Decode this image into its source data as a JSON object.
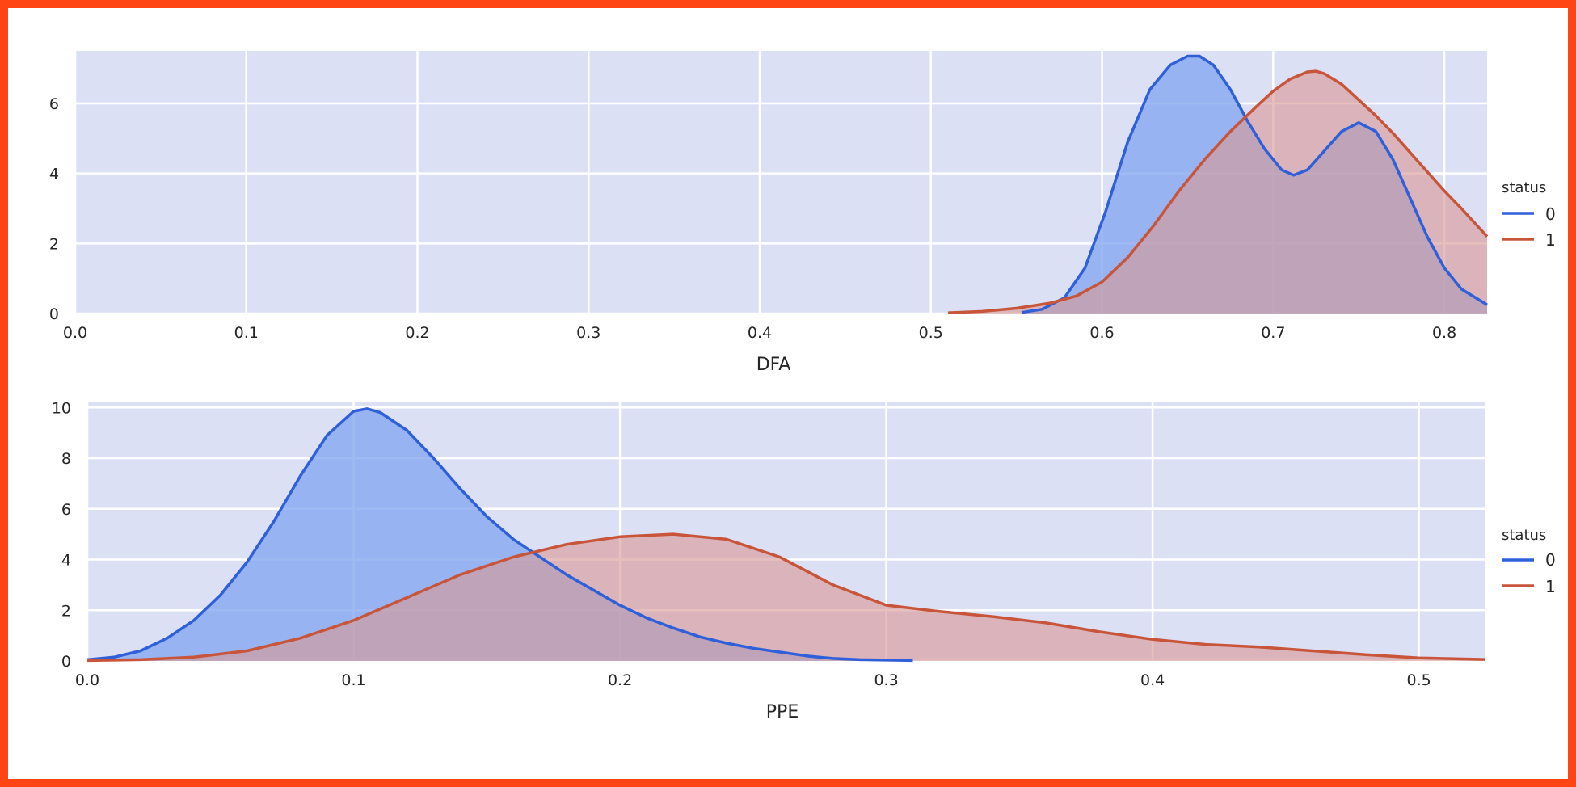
{
  "colors": {
    "frame": "#FF4514",
    "panel_bg": "#DCE0F5",
    "grid": "#FFFFFF",
    "status_0": "#2F5FD9",
    "status_0_fill": "#84A7F0",
    "status_1": "#C8553A",
    "status_1_fill": "#D99A96",
    "overlap_fill": "#9A8A9F"
  },
  "chart_data": [
    {
      "type": "area",
      "xlabel": "DFA",
      "ylabel": "",
      "xlim": [
        0.0,
        0.825
      ],
      "ylim": [
        0,
        7.5
      ],
      "xticks": [
        "0.0",
        "0.1",
        "0.2",
        "0.3",
        "0.4",
        "0.5",
        "0.6",
        "0.7",
        "0.8"
      ],
      "yticks": [
        "0",
        "2",
        "4",
        "6"
      ],
      "grid": true,
      "legend_position": "right",
      "legend": {
        "title": "status",
        "entries": [
          "0",
          "1"
        ]
      },
      "series": [
        {
          "name": "0",
          "x": [
            0.553,
            0.565,
            0.578,
            0.59,
            0.602,
            0.615,
            0.628,
            0.64,
            0.65,
            0.657,
            0.665,
            0.675,
            0.685,
            0.695,
            0.705,
            0.712,
            0.72,
            0.73,
            0.74,
            0.75,
            0.76,
            0.77,
            0.78,
            0.79,
            0.8,
            0.81,
            0.825
          ],
          "y": [
            0.03,
            0.12,
            0.45,
            1.3,
            2.9,
            4.9,
            6.4,
            7.1,
            7.35,
            7.35,
            7.1,
            6.4,
            5.5,
            4.7,
            4.1,
            3.95,
            4.1,
            4.65,
            5.2,
            5.45,
            5.2,
            4.4,
            3.3,
            2.2,
            1.3,
            0.7,
            0.25
          ]
        },
        {
          "name": "1",
          "x": [
            0.51,
            0.53,
            0.55,
            0.57,
            0.585,
            0.6,
            0.615,
            0.63,
            0.645,
            0.66,
            0.675,
            0.69,
            0.7,
            0.71,
            0.72,
            0.725,
            0.73,
            0.74,
            0.75,
            0.76,
            0.77,
            0.78,
            0.79,
            0.8,
            0.81,
            0.825
          ],
          "y": [
            0.02,
            0.06,
            0.15,
            0.3,
            0.5,
            0.9,
            1.6,
            2.5,
            3.5,
            4.4,
            5.2,
            5.9,
            6.35,
            6.7,
            6.9,
            6.92,
            6.85,
            6.55,
            6.1,
            5.65,
            5.15,
            4.6,
            4.05,
            3.5,
            3.0,
            2.2
          ]
        }
      ]
    },
    {
      "type": "area",
      "xlabel": "PPE",
      "ylabel": "",
      "xlim": [
        0.0,
        0.525
      ],
      "ylim": [
        0,
        10.2
      ],
      "xticks": [
        "0.0",
        "0.1",
        "0.2",
        "0.3",
        "0.4",
        "0.5"
      ],
      "yticks": [
        "0",
        "2",
        "4",
        "6",
        "8",
        "10"
      ],
      "grid": true,
      "legend_position": "right",
      "legend": {
        "title": "status",
        "entries": [
          "0",
          "1"
        ]
      },
      "series": [
        {
          "name": "0",
          "x": [
            0.0,
            0.01,
            0.02,
            0.03,
            0.04,
            0.05,
            0.06,
            0.07,
            0.08,
            0.09,
            0.1,
            0.105,
            0.11,
            0.12,
            0.13,
            0.14,
            0.15,
            0.16,
            0.17,
            0.18,
            0.19,
            0.2,
            0.21,
            0.22,
            0.23,
            0.24,
            0.25,
            0.26,
            0.27,
            0.28,
            0.29,
            0.31
          ],
          "y": [
            0.05,
            0.15,
            0.4,
            0.9,
            1.6,
            2.6,
            3.9,
            5.5,
            7.3,
            8.9,
            9.85,
            9.95,
            9.8,
            9.1,
            8.0,
            6.8,
            5.7,
            4.8,
            4.1,
            3.4,
            2.8,
            2.2,
            1.7,
            1.3,
            0.95,
            0.7,
            0.5,
            0.35,
            0.2,
            0.1,
            0.05,
            0.02
          ]
        },
        {
          "name": "1",
          "x": [
            0.0,
            0.02,
            0.04,
            0.06,
            0.08,
            0.1,
            0.12,
            0.14,
            0.16,
            0.18,
            0.2,
            0.22,
            0.24,
            0.26,
            0.28,
            0.3,
            0.32,
            0.34,
            0.36,
            0.38,
            0.4,
            0.42,
            0.44,
            0.46,
            0.48,
            0.5,
            0.525
          ],
          "y": [
            0.02,
            0.05,
            0.15,
            0.4,
            0.9,
            1.6,
            2.5,
            3.4,
            4.1,
            4.6,
            4.9,
            5.0,
            4.8,
            4.1,
            3.0,
            2.2,
            1.95,
            1.75,
            1.5,
            1.15,
            0.85,
            0.65,
            0.55,
            0.4,
            0.25,
            0.12,
            0.06
          ]
        }
      ]
    }
  ]
}
